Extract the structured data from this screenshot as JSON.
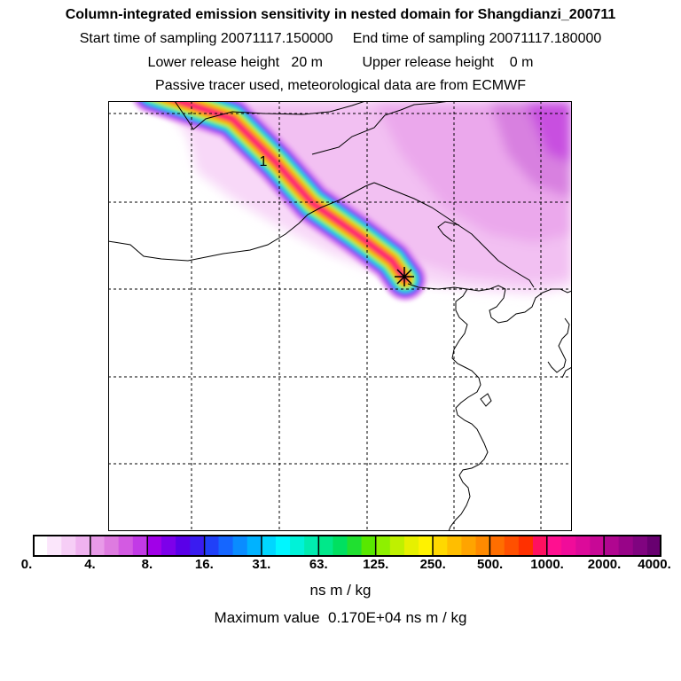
{
  "header": {
    "title": "Column-integrated emission sensitivity in nested domain for Shangdianzi_200711",
    "sampling_line": "Start time of sampling 20071117.150000     End time of sampling 20071117.180000",
    "release_line": "Lower release height   20 m          Upper release height    0 m",
    "info_line": "Passive tracer used, meteorological data are from ECMWF"
  },
  "map": {
    "plume_label": "1",
    "station_marker": "receptor-star"
  },
  "colorbar": {
    "tick_labels": [
      "0.",
      "4.",
      "8.",
      "16.",
      "31.",
      "63.",
      "125.",
      "250.",
      "500.",
      "1000.",
      "2000.",
      "4000."
    ],
    "colors": [
      "#ffffff",
      "#fbe6fb",
      "#f6cef6",
      "#efb2ef",
      "#e89ae8",
      "#de7be0",
      "#d35ae2",
      "#c23ae6",
      "#a100e8",
      "#7d00ea",
      "#5a00e8",
      "#3a1cf0",
      "#2040f8",
      "#1566ff",
      "#0a8cff",
      "#00b2ff",
      "#00d6ff",
      "#00f6ff",
      "#00f2d8",
      "#00ecb0",
      "#00e88a",
      "#00e060",
      "#20e030",
      "#58e800",
      "#8ef000",
      "#bff000",
      "#e6f000",
      "#fff200",
      "#ffd800",
      "#ffbe00",
      "#ffa400",
      "#ff8a00",
      "#ff6e00",
      "#ff5000",
      "#ff3000",
      "#ff1060",
      "#ff1090",
      "#f00c9a",
      "#dc0a9a",
      "#c80896",
      "#b00690",
      "#980488",
      "#800480",
      "#680070"
    ],
    "units": "ns m / kg"
  },
  "footer": {
    "maximum_value": "Maximum value  0.170E+04 ns m / kg"
  }
}
